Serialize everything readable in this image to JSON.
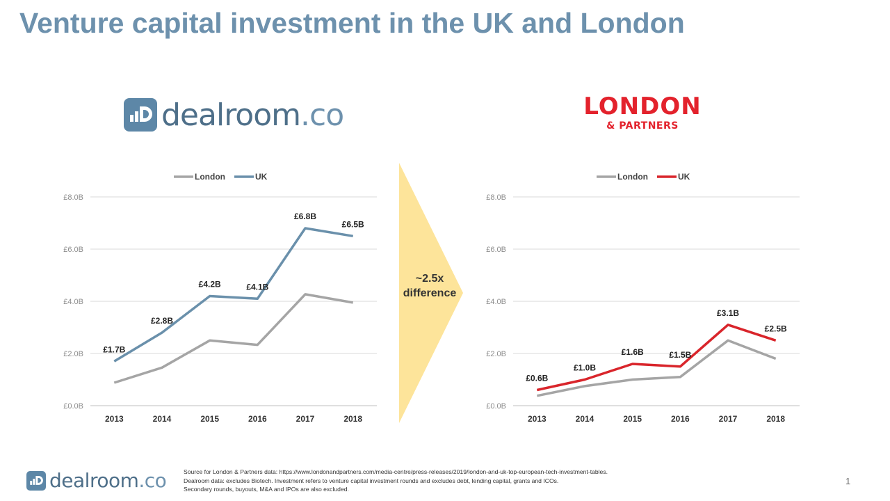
{
  "title": "Venture capital investment in the UK and London",
  "logos": {
    "dealroom": {
      "name": "dealroom",
      "suffix": ".co"
    },
    "london_partners": {
      "line1": "LONDON",
      "line2": "& PARTNERS"
    }
  },
  "arrow": {
    "line1": "~2.5x",
    "line2": "difference",
    "color": "#fde49a"
  },
  "chart_data": [
    {
      "type": "line",
      "categories": [
        "2013",
        "2014",
        "2015",
        "2016",
        "2017",
        "2018"
      ],
      "ylim": [
        0,
        8
      ],
      "yticks": [
        "£0.0B",
        "£2.0B",
        "£4.0B",
        "£6.0B",
        "£8.0B"
      ],
      "legend_position": "top-center",
      "grid": true,
      "series": [
        {
          "name": "London",
          "color": "#a5a5a5",
          "values": [
            0.88,
            1.46,
            2.5,
            2.33,
            4.27,
            3.95
          ]
        },
        {
          "name": "UK",
          "color": "#6a90ab",
          "values": [
            1.7,
            2.8,
            4.2,
            4.1,
            6.8,
            6.5
          ],
          "labels": [
            "£1.7B",
            "£2.8B",
            "£4.2B",
            "£4.1B",
            "£6.8B",
            "£6.5B"
          ]
        }
      ]
    },
    {
      "type": "line",
      "categories": [
        "2013",
        "2014",
        "2015",
        "2016",
        "2017",
        "2018"
      ],
      "ylim": [
        0,
        8
      ],
      "yticks": [
        "£0.0B",
        "£2.0B",
        "£4.0B",
        "£6.0B",
        "£8.0B"
      ],
      "legend_position": "top-center",
      "grid": true,
      "series": [
        {
          "name": "London",
          "color": "#a5a5a5",
          "values": [
            0.38,
            0.75,
            1.0,
            1.1,
            2.5,
            1.8
          ]
        },
        {
          "name": "UK",
          "color": "#d9252b",
          "values": [
            0.6,
            1.0,
            1.6,
            1.5,
            3.1,
            2.5
          ],
          "labels": [
            "£0.6B",
            "£1.0B",
            "£1.6B",
            "£1.5B",
            "£3.1B",
            "£2.5B"
          ]
        }
      ]
    }
  ],
  "footer": {
    "notes": [
      "Source for London & Partners data: https://www.londonandpartners.com/media-centre/press-releases/2019/london-and-uk-top-european-tech-investment-tables.",
      "Dealroom data: excludes Biotech. Investment refers to venture capital investment rounds and excludes debt, lending capital, grants and ICOs.",
      "Secondary rounds, buyouts, M&A and IPOs are also excluded."
    ],
    "page_number": "1"
  }
}
